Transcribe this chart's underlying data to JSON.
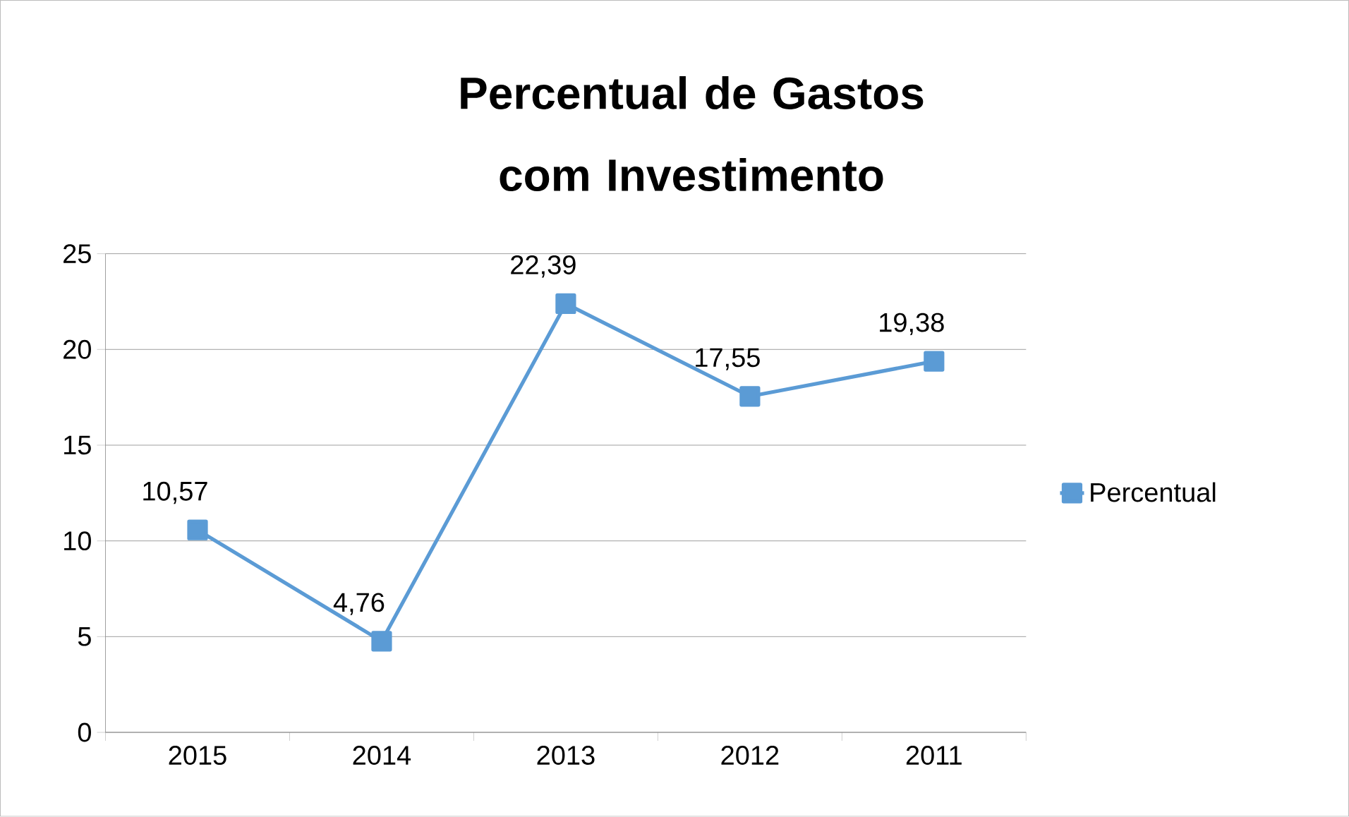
{
  "chart_data": {
    "type": "line",
    "title": "Percentual de Gastos com Investimento",
    "categories": [
      "2015",
      "2014",
      "2013",
      "2012",
      "2011"
    ],
    "series": [
      {
        "name": "Percentual",
        "color": "#5b9bd5",
        "values": [
          10.57,
          4.76,
          22.39,
          17.55,
          19.38
        ],
        "value_labels": [
          "10,57",
          "4,76",
          "22,39",
          "17,55",
          "19,38"
        ]
      }
    ],
    "ylim": [
      0,
      25
    ],
    "yticks": [
      0,
      5,
      10,
      15,
      20,
      25
    ],
    "grid": "y",
    "legend": "right",
    "marker": "square",
    "line_style": "solid"
  }
}
